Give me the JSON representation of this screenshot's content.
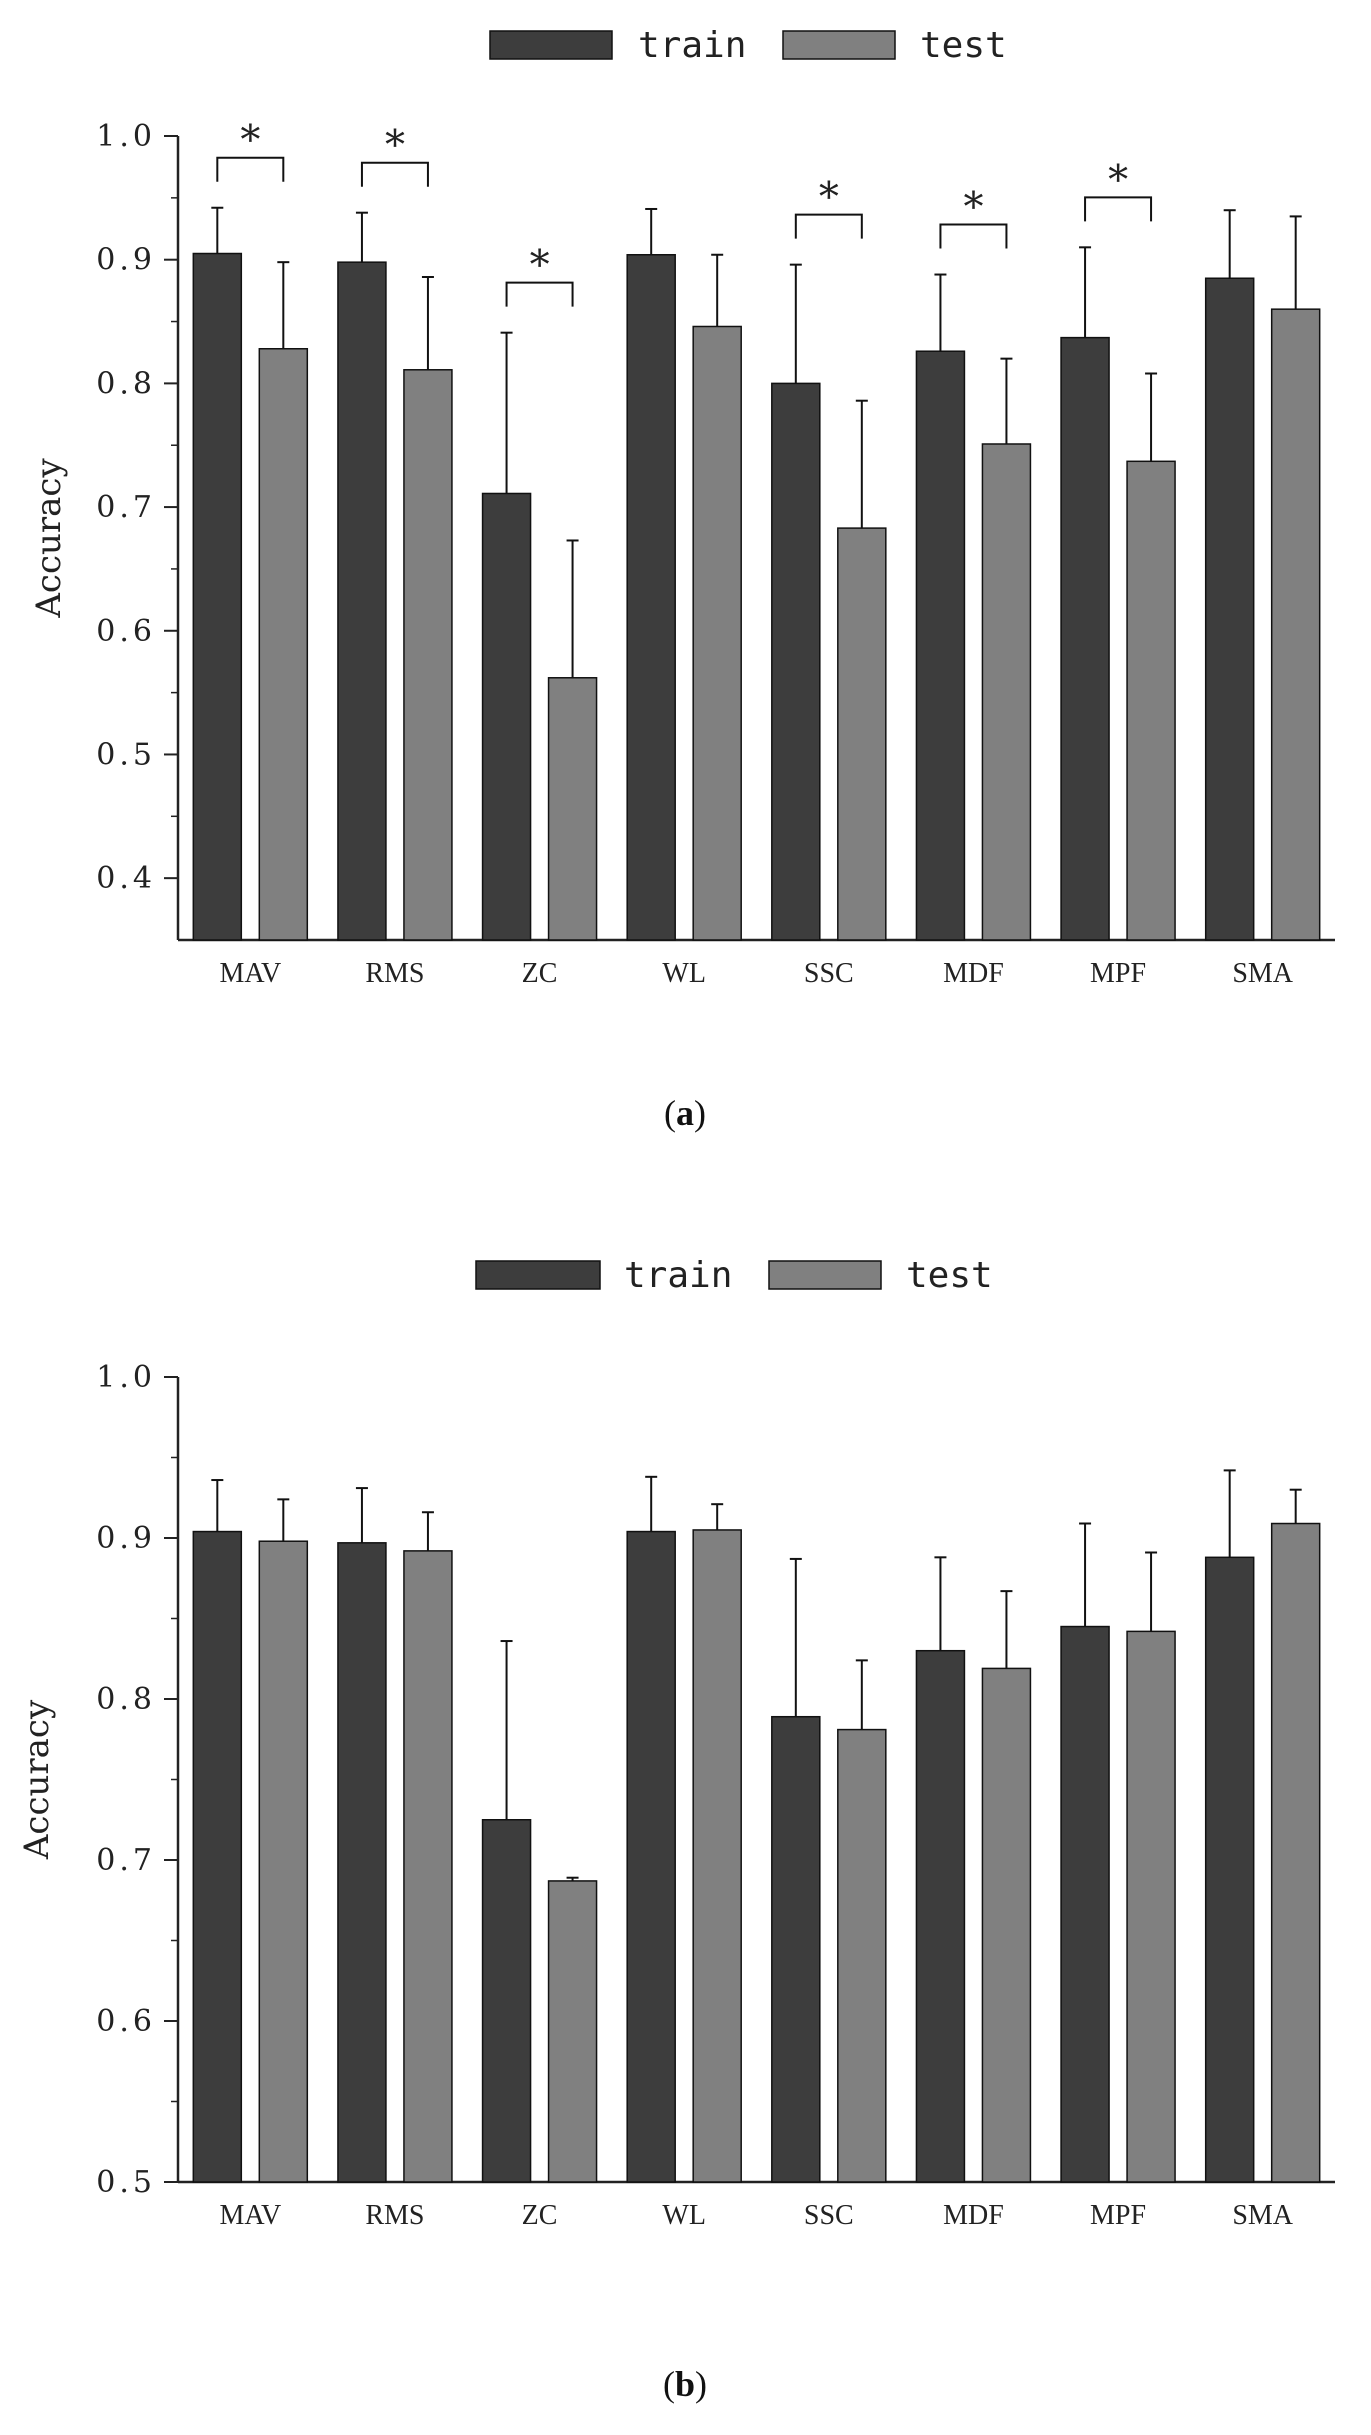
{
  "colors": {
    "train": "#3d3d3d",
    "test": "#808080",
    "axis": "#222222",
    "bar_outline": "#111111"
  },
  "chart_data": [
    {
      "type": "bar",
      "panel": "a",
      "caption_letter": "a",
      "legend": [
        "train",
        "test"
      ],
      "ylabel": "Accuracy",
      "xlabel": "",
      "ylim": [
        0.35,
        1.0
      ],
      "yticks": [
        "1.0",
        "0.9",
        "0.8",
        "0.7",
        "0.6",
        "0.5",
        "0.4"
      ],
      "categories": [
        "MAV",
        "RMS",
        "ZC",
        "WL",
        "SSC",
        "MDF",
        "MPF",
        "SMA"
      ],
      "series": [
        {
          "name": "train",
          "values": [
            0.905,
            0.898,
            0.711,
            0.904,
            0.8,
            0.826,
            0.837,
            0.885
          ],
          "errors": [
            0.037,
            0.04,
            0.13,
            0.037,
            0.096,
            0.062,
            0.073,
            0.055
          ]
        },
        {
          "name": "test",
          "values": [
            0.828,
            0.811,
            0.562,
            0.846,
            0.683,
            0.751,
            0.737,
            0.86
          ],
          "errors": [
            0.07,
            0.075,
            0.111,
            0.058,
            0.103,
            0.069,
            0.071,
            0.075
          ]
        }
      ],
      "significance": [
        {
          "category": "MAV",
          "label": "*"
        },
        {
          "category": "RMS",
          "label": "*"
        },
        {
          "category": "ZC",
          "label": "*"
        },
        {
          "category": "SSC",
          "label": "*"
        },
        {
          "category": "MDF",
          "label": "*"
        },
        {
          "category": "MPF",
          "label": "*"
        }
      ]
    },
    {
      "type": "bar",
      "panel": "b",
      "caption_letter": "b",
      "legend": [
        "train",
        "test"
      ],
      "ylabel": "Accuracy",
      "xlabel": "",
      "ylim": [
        0.5,
        1.0
      ],
      "yticks": [
        "1.0",
        "0.9",
        "0.8",
        "0.7",
        "0.6",
        "0.5"
      ],
      "categories": [
        "MAV",
        "RMS",
        "ZC",
        "WL",
        "SSC",
        "MDF",
        "MPF",
        "SMA"
      ],
      "series": [
        {
          "name": "train",
          "values": [
            0.904,
            0.897,
            0.725,
            0.904,
            0.789,
            0.83,
            0.845,
            0.888
          ],
          "errors": [
            0.032,
            0.034,
            0.111,
            0.034,
            0.098,
            0.058,
            0.064,
            0.054
          ]
        },
        {
          "name": "test",
          "values": [
            0.898,
            0.892,
            0.687,
            0.905,
            0.781,
            0.819,
            0.842,
            0.909
          ],
          "errors": [
            0.026,
            0.024,
            0.002,
            0.016,
            0.043,
            0.048,
            0.049,
            0.021
          ]
        }
      ],
      "significance": []
    }
  ]
}
